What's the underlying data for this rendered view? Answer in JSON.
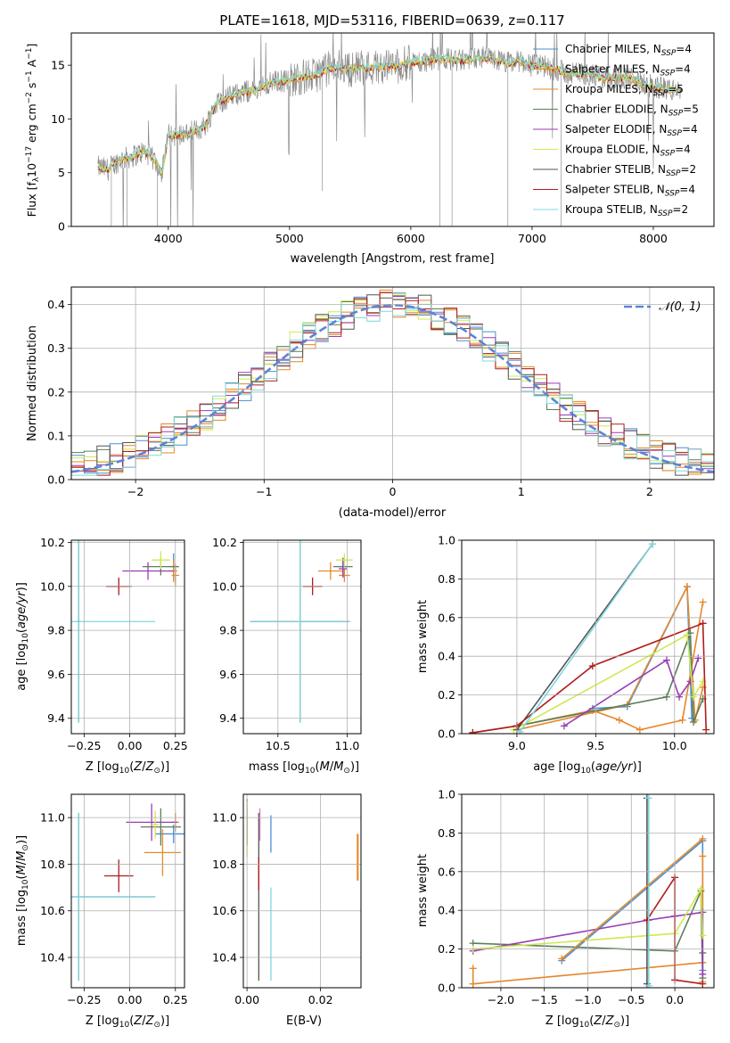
{
  "figure": {
    "suptitle": ""
  },
  "colors": {
    "Chabrier MILES": "#4a8fd6",
    "Salpeter MILES": "#e6862a",
    "Kroupa MILES": "#e48a2a",
    "Chabrier ELODIE": "#5a7f5a",
    "Salpeter ELODIE": "#9a3cb4",
    "Kroupa ELODIE": "#d0e850",
    "Chabrier STELIB": "#555555",
    "Salpeter STELIB": "#b01c1c",
    "Kroupa STELIB": "#7fd8e0",
    "normal": "#5b84d6",
    "grid": "#b0b0b0"
  },
  "chart_data": [
    {
      "id": "spectrum",
      "type": "line",
      "title": "PLATE=1618, MJD=53116, FIBERID=0639, z=0.117",
      "xlabel": "wavelength [Angstrom, rest frame]",
      "ylabel_parts": [
        "Flux [f",
        "λ",
        "10",
        "−17",
        " erg cm",
        "−2",
        " s",
        "−1",
        " A",
        "−1",
        "]"
      ],
      "xlim": [
        3200,
        8500
      ],
      "ylim": [
        0,
        18
      ],
      "xticks": [
        4000,
        5000,
        6000,
        7000,
        8000
      ],
      "yticks": [
        0,
        5,
        10,
        15
      ],
      "grid": false,
      "legend_position": "upper-right",
      "legend": [
        {
          "name": "Chabrier MILES",
          "n": "4"
        },
        {
          "name": "Salpeter MILES",
          "n": "4"
        },
        {
          "name": "Kroupa MILES",
          "n": "5"
        },
        {
          "name": "Chabrier ELODIE",
          "n": "5"
        },
        {
          "name": "Salpeter ELODIE",
          "n": "4"
        },
        {
          "name": "Kroupa ELODIE",
          "n": "4"
        },
        {
          "name": "Chabrier STELIB",
          "n": "2"
        },
        {
          "name": "Salpeter STELIB",
          "n": "4"
        },
        {
          "name": "Kroupa STELIB",
          "n": "2"
        }
      ],
      "continuum": [
        [
          3420,
          5.5
        ],
        [
          3500,
          5.3
        ],
        [
          3600,
          6.2
        ],
        [
          3700,
          6.5
        ],
        [
          3800,
          7.0
        ],
        [
          3900,
          6.0
        ],
        [
          3950,
          5.0
        ],
        [
          4000,
          8.5
        ],
        [
          4100,
          8.5
        ],
        [
          4200,
          8.8
        ],
        [
          4300,
          9.3
        ],
        [
          4400,
          11.5
        ],
        [
          4500,
          12.0
        ],
        [
          4600,
          12.5
        ],
        [
          4700,
          12.6
        ],
        [
          4800,
          13.2
        ],
        [
          4900,
          13.5
        ],
        [
          5000,
          13.6
        ],
        [
          5100,
          13.9
        ],
        [
          5200,
          14.0
        ],
        [
          5300,
          14.6
        ],
        [
          5400,
          14.9
        ],
        [
          5500,
          14.6
        ],
        [
          5600,
          14.8
        ],
        [
          5700,
          14.8
        ],
        [
          5800,
          15.0
        ],
        [
          5900,
          14.9
        ],
        [
          6000,
          15.3
        ],
        [
          6100,
          15.3
        ],
        [
          6200,
          15.6
        ],
        [
          6300,
          15.6
        ],
        [
          6400,
          15.4
        ],
        [
          6500,
          15.6
        ],
        [
          6600,
          15.7
        ],
        [
          6700,
          15.5
        ],
        [
          6800,
          15.2
        ],
        [
          6900,
          15.4
        ],
        [
          7000,
          15.0
        ],
        [
          7100,
          14.9
        ],
        [
          7200,
          14.6
        ],
        [
          7300,
          14.2
        ],
        [
          7400,
          14.3
        ],
        [
          7500,
          14.0
        ],
        [
          7600,
          13.8
        ],
        [
          7700,
          13.9
        ],
        [
          7800,
          13.8
        ],
        [
          7900,
          13.3
        ],
        [
          8000,
          13.0
        ],
        [
          8100,
          12.8
        ],
        [
          8230,
          12.6
        ]
      ]
    },
    {
      "id": "residuals",
      "type": "histogram",
      "xlabel": "(data-model)/error",
      "ylabel": "Normed distribution",
      "xlim": [
        -2.5,
        2.5
      ],
      "ylim": [
        0,
        0.44
      ],
      "xticks": [
        -2,
        -1,
        0,
        1,
        2
      ],
      "yticks": [
        0.0,
        0.1,
        0.2,
        0.3,
        0.4
      ],
      "grid": true,
      "legend_position": "upper-right",
      "legend_label": "𝒩(0, 1)",
      "bins": 50
    },
    {
      "id": "age-vs-Z",
      "type": "scatter",
      "xlabel": "Z [log10(Z/Z⊙)]",
      "ylabel": "age  [log10(age/yr)]",
      "xlim": [
        -0.32,
        0.3
      ],
      "ylim": [
        9.33,
        10.21
      ],
      "xticks": [
        -0.25,
        0.0,
        0.25
      ],
      "yticks": [
        9.4,
        9.6,
        9.8,
        10.0,
        10.2
      ],
      "grid": true,
      "points": [
        {
          "model": "Chabrier MILES",
          "x": 0.24,
          "y": 10.09,
          "xerr": 0.02,
          "yerr": 0.06
        },
        {
          "model": "Salpeter MILES",
          "x": 0.25,
          "y": 10.05,
          "xerr": 0.02,
          "yerr": 0.05
        },
        {
          "model": "Kroupa MILES",
          "x": 0.24,
          "y": 10.07,
          "xerr": 0.02,
          "yerr": 0.05
        },
        {
          "model": "Chabrier ELODIE",
          "x": 0.17,
          "y": 10.09,
          "xerr": 0.1,
          "yerr": 0.04
        },
        {
          "model": "Salpeter ELODIE",
          "x": 0.1,
          "y": 10.07,
          "xerr": 0.14,
          "yerr": 0.04
        },
        {
          "model": "Kroupa ELODIE",
          "x": 0.17,
          "y": 10.12,
          "xerr": 0.05,
          "yerr": 0.04
        },
        {
          "model": "Chabrier STELIB",
          "x": -0.28,
          "y": 9.84,
          "xerr": 0.01,
          "yerr": 0.46
        },
        {
          "model": "Salpeter STELIB",
          "x": -0.06,
          "y": 10.0,
          "xerr": 0.07,
          "yerr": 0.04
        },
        {
          "model": "Kroupa STELIB",
          "x": -0.28,
          "y": 9.84,
          "xerr": 0.42,
          "yerr": 0.46
        }
      ]
    },
    {
      "id": "age-vs-mass",
      "type": "scatter",
      "xlabel": "mass [log10(M/M⊙)]",
      "ylabel": "",
      "xlim": [
        10.25,
        11.1
      ],
      "ylim": [
        9.33,
        10.21
      ],
      "xticks": [
        10.5,
        11.0
      ],
      "yticks": [
        9.4,
        9.6,
        9.8,
        10.0,
        10.2
      ],
      "grid": true,
      "points": [
        {
          "model": "Chabrier MILES",
          "x": 10.97,
          "y": 10.09,
          "xerr": 0.03,
          "yerr": 0.04
        },
        {
          "model": "Salpeter MILES",
          "x": 10.98,
          "y": 10.05,
          "xerr": 0.04,
          "yerr": 0.03
        },
        {
          "model": "Kroupa MILES",
          "x": 10.88,
          "y": 10.07,
          "xerr": 0.09,
          "yerr": 0.04
        },
        {
          "model": "Chabrier ELODIE",
          "x": 10.97,
          "y": 10.09,
          "xerr": 0.07,
          "yerr": 0.04
        },
        {
          "model": "Salpeter ELODIE",
          "x": 10.97,
          "y": 10.08,
          "xerr": 0.03,
          "yerr": 0.04
        },
        {
          "model": "Kroupa ELODIE",
          "x": 10.98,
          "y": 10.12,
          "xerr": 0.06,
          "yerr": 0.03
        },
        {
          "model": "Chabrier STELIB",
          "x": 10.66,
          "y": 9.84,
          "xerr": 0.36,
          "yerr": 0.46
        },
        {
          "model": "Salpeter STELIB",
          "x": 10.75,
          "y": 10.0,
          "xerr": 0.07,
          "yerr": 0.04
        },
        {
          "model": "Kroupa STELIB",
          "x": 10.66,
          "y": 9.84,
          "xerr": 0.36,
          "yerr": 0.46
        }
      ]
    },
    {
      "id": "weight-vs-age",
      "type": "line",
      "xlabel": "age  [log10(age/yr)]",
      "ylabel": "mass weight",
      "xlim": [
        8.65,
        10.25
      ],
      "ylim": [
        0,
        1
      ],
      "xticks": [
        9.0,
        9.5,
        10.0
      ],
      "yticks": [
        0.0,
        0.2,
        0.4,
        0.6,
        0.8,
        1.0
      ],
      "grid": true,
      "series": [
        {
          "model": "Chabrier MILES",
          "x": [
            9.48,
            9.7,
            10.08,
            10.11
          ],
          "y": [
            0.13,
            0.14,
            0.76,
            0.08
          ]
        },
        {
          "model": "Salpeter MILES",
          "x": [
            9.0,
            9.48,
            9.65,
            9.78,
            10.05,
            10.18
          ],
          "y": [
            0.04,
            0.12,
            0.07,
            0.02,
            0.07,
            0.68
          ]
        },
        {
          "model": "Kroupa MILES",
          "x": [
            9.0,
            9.7,
            10.08,
            10.13,
            10.18
          ],
          "y": [
            0.02,
            0.15,
            0.76,
            0.07,
            0.24
          ]
        },
        {
          "model": "Chabrier ELODIE",
          "x": [
            8.72,
            9.0,
            9.95,
            10.1,
            10.12,
            10.18
          ],
          "y": [
            0.005,
            0.04,
            0.19,
            0.52,
            0.06,
            0.18
          ]
        },
        {
          "model": "Salpeter ELODIE",
          "x": [
            9.3,
            9.95,
            10.03,
            10.1,
            10.15
          ],
          "y": [
            0.04,
            0.38,
            0.19,
            0.27,
            0.39
          ]
        },
        {
          "model": "Kroupa ELODIE",
          "x": [
            8.98,
            10.08,
            10.12,
            10.18
          ],
          "y": [
            0.02,
            0.51,
            0.19,
            0.27
          ]
        },
        {
          "model": "Chabrier STELIB",
          "x": [
            9.0,
            9.86
          ],
          "y": [
            0.02,
            0.98
          ]
        },
        {
          "model": "Salpeter STELIB",
          "x": [
            8.72,
            9.0,
            9.48,
            10.18,
            10.2
          ],
          "y": [
            0.005,
            0.04,
            0.35,
            0.57,
            0.02
          ]
        },
        {
          "model": "Kroupa STELIB",
          "x": [
            9.02,
            9.86
          ],
          "y": [
            0.01,
            0.98
          ]
        }
      ]
    },
    {
      "id": "mass-vs-Z",
      "type": "scatter",
      "xlabel": "Z [log10(Z/Z⊙)]",
      "ylabel": "mass [log10(M/M⊙)]",
      "xlim": [
        -0.32,
        0.3
      ],
      "ylim": [
        10.27,
        11.1
      ],
      "xticks": [
        -0.25,
        0.0,
        0.25
      ],
      "yticks": [
        10.4,
        10.6,
        10.8,
        11.0
      ],
      "grid": true,
      "points": [
        {
          "model": "Chabrier MILES",
          "x": 0.24,
          "y": 10.93,
          "xerr": 0.1,
          "yerr": 0.04
        },
        {
          "model": "Salpeter MILES",
          "x": 0.25,
          "y": 10.98,
          "xerr": 0.02,
          "yerr": 0.04
        },
        {
          "model": "Kroupa MILES",
          "x": 0.18,
          "y": 10.85,
          "xerr": 0.1,
          "yerr": 0.1
        },
        {
          "model": "Chabrier ELODIE",
          "x": 0.17,
          "y": 10.96,
          "xerr": 0.11,
          "yerr": 0.08
        },
        {
          "model": "Salpeter ELODIE",
          "x": 0.12,
          "y": 10.98,
          "xerr": 0.14,
          "yerr": 0.08
        },
        {
          "model": "Kroupa ELODIE",
          "x": 0.14,
          "y": 10.97,
          "xerr": 0.02,
          "yerr": 0.06
        },
        {
          "model": "Chabrier STELIB",
          "x": -0.28,
          "y": 10.66,
          "xerr": 0.42,
          "yerr": 0.36
        },
        {
          "model": "Salpeter STELIB",
          "x": -0.06,
          "y": 10.75,
          "xerr": 0.08,
          "yerr": 0.07
        },
        {
          "model": "Kroupa STELIB",
          "x": -0.28,
          "y": 10.66,
          "xerr": 0.42,
          "yerr": 0.36
        }
      ]
    },
    {
      "id": "mass-vs-EBV",
      "type": "scatter",
      "xlabel": "E(B-V)",
      "ylabel": "",
      "xlim": [
        -0.001,
        0.031
      ],
      "ylim": [
        10.27,
        11.1
      ],
      "xticks": [
        0.0,
        0.02
      ],
      "yticks": [
        10.4,
        10.6,
        10.8,
        11.0
      ],
      "grid": true,
      "points": [
        {
          "model": "Chabrier MILES",
          "x": 0.0065,
          "y": 10.93,
          "xerr": 0,
          "yerr": 0.08
        },
        {
          "model": "Salpeter MILES",
          "x": 0.0302,
          "y": 10.83,
          "xerr": 0,
          "yerr": 0.1
        },
        {
          "model": "Kroupa MILES",
          "x": 0.03,
          "y": 10.83,
          "xerr": 0,
          "yerr": 0.1
        },
        {
          "model": "Chabrier ELODIE",
          "x": 0.0,
          "y": 10.96,
          "xerr": 0,
          "yerr": 0.08
        },
        {
          "model": "Salpeter ELODIE",
          "x": 0.0,
          "y": 10.98,
          "xerr": 0,
          "yerr": 0.1
        },
        {
          "model": "Kroupa ELODIE",
          "x": 0.0,
          "y": 10.95,
          "xerr": 0,
          "yerr": 0.12
        },
        {
          "model": "Chabrier STELIB",
          "x": 0.0032,
          "y": 10.66,
          "xerr": 0,
          "yerr": 0.36
        },
        {
          "model": "Salpeter STELIB",
          "x": 0.0032,
          "y": 10.76,
          "xerr": 0,
          "yerr": 0.07
        },
        {
          "model": "Kroupa STELIB",
          "x": 0.0065,
          "y": 10.5,
          "xerr": 0,
          "yerr": 0.2
        }
      ],
      "extra_segments": [
        {
          "model": "Salpeter ELODIE",
          "x": 0.0035,
          "y": 10.97,
          "yerr": 0.07
        }
      ]
    },
    {
      "id": "weight-vs-Z",
      "type": "line",
      "xlabel": "Z [log10(Z/Z⊙)]",
      "ylabel": "mass weight",
      "xlim": [
        -2.45,
        0.45
      ],
      "ylim": [
        0,
        1
      ],
      "xticks": [
        -2.0,
        -1.5,
        -1.0,
        -0.5,
        0.0
      ],
      "yticks": [
        0.0,
        0.2,
        0.4,
        0.6,
        0.8,
        1.0
      ],
      "grid": true,
      "series": [
        {
          "model": "Chabrier MILES",
          "x": [
            -1.3,
            0.32,
            0.32
          ],
          "y": [
            0.14,
            0.76,
            0.09
          ]
        },
        {
          "model": "Salpeter MILES",
          "x": [
            -2.32,
            0.32,
            0.32,
            0.32
          ],
          "y": [
            0.02,
            0.13,
            0.68,
            0.03
          ]
        },
        {
          "model": "Kroupa MILES",
          "x": [
            -2.32,
            -2.32
          ],
          "y": [
            0.1,
            0.02
          ]
        },
        {
          "model": "Chabrier ELODIE",
          "x": [
            -2.32,
            0.0,
            0.3,
            0.32,
            0.32
          ],
          "y": [
            0.23,
            0.19,
            0.5,
            0.05,
            0.18
          ]
        },
        {
          "model": "Salpeter ELODIE",
          "x": [
            -2.32,
            -0.3,
            0.0,
            0.32,
            0.32
          ],
          "y": [
            0.19,
            0.35,
            0.37,
            0.39,
            0.07
          ]
        },
        {
          "model": "Kroupa ELODIE",
          "x": [
            -2.32,
            0.0,
            0.3,
            0.32
          ],
          "y": [
            0.2,
            0.28,
            0.51,
            0.27
          ]
        },
        {
          "model": "Chabrier STELIB",
          "x": [
            -0.32,
            -0.32
          ],
          "y": [
            0.98,
            0.02
          ]
        },
        {
          "model": "Salpeter STELIB",
          "x": [
            -0.32,
            0.0,
            0.0,
            0.32
          ],
          "y": [
            0.35,
            0.57,
            0.04,
            0.02
          ]
        },
        {
          "model": "Kroupa STELIB",
          "x": [
            -0.3,
            -0.3
          ],
          "y": [
            0.98,
            0.01
          ]
        },
        {
          "model": "Kroupa MILES",
          "x": [
            -1.3,
            0.32
          ],
          "y": [
            0.15,
            0.77
          ]
        }
      ]
    }
  ]
}
